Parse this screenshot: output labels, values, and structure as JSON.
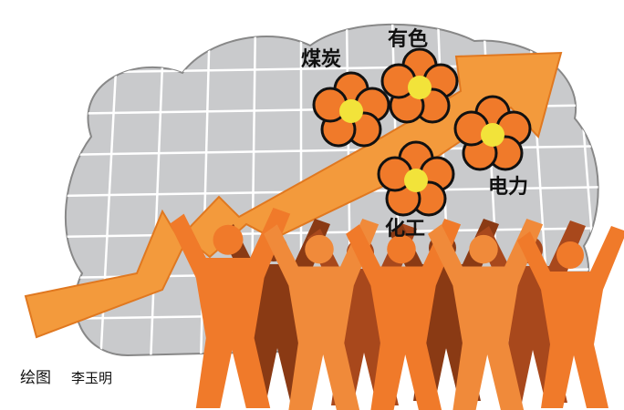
{
  "labels": {
    "coal": "煤炭",
    "nonferrous": "有色",
    "power": "电力",
    "chemical": "化工"
  },
  "credit": {
    "prefix": "绘图",
    "author": "李玉明"
  }
}
